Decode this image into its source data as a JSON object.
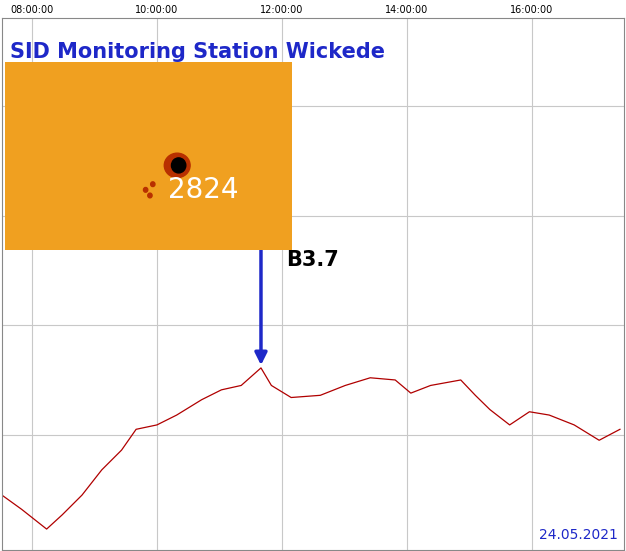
{
  "chart_data": {
    "type": "line",
    "title": "SID Monitoring Station Wickede",
    "date_label": "24.05.2021",
    "x": [
      "07:31:00",
      "07:50:00",
      "08:14:00",
      "08:29:00",
      "08:48:00",
      "09:07:00",
      "09:26:00",
      "09:40:00",
      "10:00:00",
      "10:19:00",
      "10:43:00",
      "11:02:00",
      "11:21:00",
      "11:40:00",
      "11:50:00",
      "12:09:00",
      "12:37:00",
      "13:01:00",
      "13:25:00",
      "13:49:00",
      "14:04:00",
      "14:23:00",
      "14:52:00",
      "15:06:00",
      "15:20:00",
      "15:39:00",
      "15:58:00",
      "16:17:00",
      "16:41:00",
      "17:05:00",
      "17:25:00"
    ],
    "values": [
      0.45,
      0.32,
      0.14,
      0.27,
      0.45,
      0.68,
      0.86,
      1.05,
      1.09,
      1.18,
      1.32,
      1.41,
      1.45,
      1.61,
      1.45,
      1.34,
      1.36,
      1.45,
      1.52,
      1.5,
      1.38,
      1.45,
      1.5,
      1.36,
      1.23,
      1.09,
      1.21,
      1.18,
      1.09,
      0.95,
      1.05
    ],
    "color": "#b00000",
    "xlim": [
      "07:31:00",
      "17:29:00"
    ],
    "xticks": [
      "08:00:00",
      "10:00:00",
      "12:00:00",
      "14:00:00",
      "16:00:00"
    ],
    "ylim": [
      -0.05,
      4.8
    ],
    "yticks": [
      1,
      2,
      3,
      4
    ],
    "grid": true,
    "tick_labels": "x",
    "annotations": [
      {
        "text": "B3.7",
        "x": "11:40:00"
      }
    ],
    "inset_label": "2824"
  }
}
